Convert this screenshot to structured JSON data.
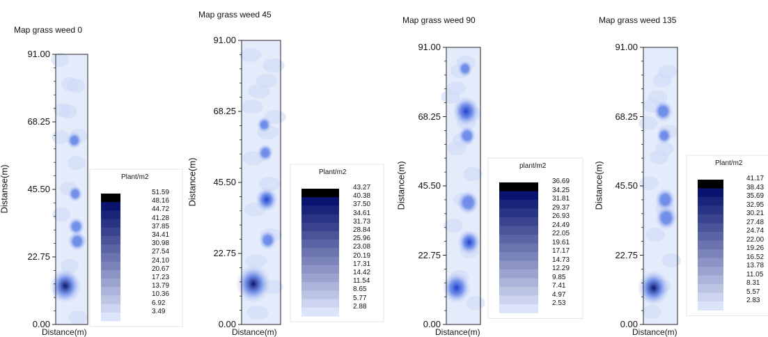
{
  "chart_data": [
    {
      "type": "heatmap",
      "title": "Map grass weed 0",
      "ylabel": "Distanse(m)",
      "xlabel": "Distance(m)",
      "ylim": [
        0,
        91
      ],
      "yticks": [
        "91.00",
        "68.25",
        "45.50",
        "22.75",
        "0.00"
      ],
      "legend_title": "Plant/m2",
      "legend_levels": [
        "51.59",
        "48.16",
        "44.72",
        "41.28",
        "37.85",
        "34.41",
        "30.98",
        "27.54",
        "24.10",
        "20.67",
        "17.23",
        "13.79",
        "10.36",
        "6.92",
        "3.49"
      ],
      "hotspots": [
        {
          "y": 13,
          "value": 44
        },
        {
          "y": 28,
          "value": 14
        },
        {
          "y": 33,
          "value": 12
        },
        {
          "y": 44,
          "value": 8
        },
        {
          "y": 62,
          "value": 9
        }
      ]
    },
    {
      "type": "heatmap",
      "title": "Map grass weed 45",
      "ylabel": "Distance(m)",
      "xlabel": "Distance(m)",
      "ylim": [
        0,
        91
      ],
      "yticks": [
        "91.00",
        "68.25",
        "45.50",
        "22.75",
        "0.00"
      ],
      "legend_title": "Plant/m2",
      "legend_levels": [
        "43.27",
        "40.38",
        "37.50",
        "34.61",
        "31.73",
        "28.84",
        "25.96",
        "23.08",
        "20.19",
        "17.31",
        "14.42",
        "11.54",
        "8.65",
        "5.77",
        "2.88"
      ],
      "hotspots": [
        {
          "y": 13,
          "value": 42
        },
        {
          "y": 27,
          "value": 12
        },
        {
          "y": 40,
          "value": 20
        },
        {
          "y": 55,
          "value": 9
        },
        {
          "y": 64,
          "value": 6
        }
      ]
    },
    {
      "type": "heatmap",
      "title": "Map grass weed 90",
      "ylabel": "Distance(m)",
      "xlabel": "Distance(m)",
      "ylim": [
        0,
        91
      ],
      "yticks": [
        "91.00",
        "68.25",
        "45.50",
        "22.75",
        "0.00"
      ],
      "legend_title": "plant/m2",
      "legend_levels": [
        "36.69",
        "34.25",
        "31.81",
        "29.37",
        "26.93",
        "24.49",
        "22.05",
        "19.61",
        "17.17",
        "14.73",
        "12.29",
        "9.85",
        "7.41",
        "4.97",
        "2.53"
      ],
      "hotspots": [
        {
          "y": 12,
          "value": 26
        },
        {
          "y": 27,
          "value": 18
        },
        {
          "y": 40,
          "value": 16
        },
        {
          "y": 62,
          "value": 10
        },
        {
          "y": 70,
          "value": 24
        },
        {
          "y": 84,
          "value": 6
        }
      ]
    },
    {
      "type": "heatmap",
      "title": "Map grass weed 135",
      "ylabel": "Distance(m)",
      "xlabel": "Distance(m)",
      "ylim": [
        0,
        91
      ],
      "yticks": [
        "91.00",
        "68.25",
        "45.50",
        "22.75",
        "0.00"
      ],
      "legend_title": "Plant/m2",
      "legend_levels": [
        "41.17",
        "38.43",
        "35.69",
        "32.95",
        "30.21",
        "27.48",
        "24.74",
        "22.00",
        "19.26",
        "16.52",
        "13.78",
        "11.05",
        "8.31",
        "5.57",
        "2.83"
      ],
      "hotspots": [
        {
          "y": 12,
          "value": 36
        },
        {
          "y": 35,
          "value": 18
        },
        {
          "y": 41,
          "value": 16
        },
        {
          "y": 62,
          "value": 8
        },
        {
          "y": 70,
          "value": 14
        }
      ]
    }
  ]
}
